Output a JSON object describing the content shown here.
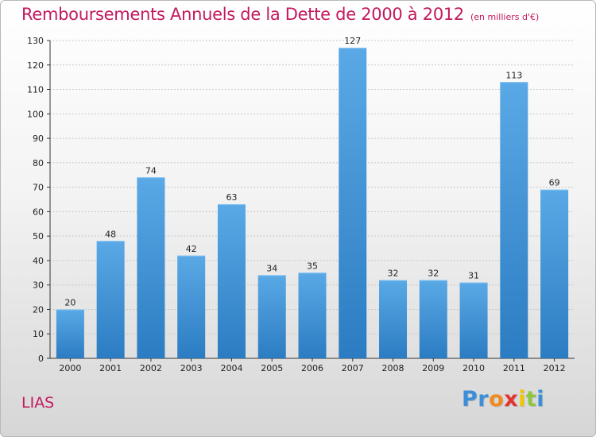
{
  "chart_data": {
    "type": "bar",
    "title": "Remboursements Annuels de la Dette de 2000 à 2012",
    "subtitle": "(en milliers d'€)",
    "categories": [
      "2000",
      "2001",
      "2002",
      "2003",
      "2004",
      "2005",
      "2006",
      "2007",
      "2008",
      "2009",
      "2010",
      "2011",
      "2012"
    ],
    "values": [
      20,
      48,
      74,
      42,
      63,
      34,
      35,
      127,
      32,
      32,
      31,
      113,
      69
    ],
    "ylim": [
      0,
      130
    ],
    "yticks": [
      0,
      10,
      20,
      30,
      40,
      50,
      60,
      70,
      80,
      90,
      100,
      110,
      120,
      130
    ],
    "grid": true,
    "colors": {
      "bar_top": "#5aa9e6",
      "bar_bottom": "#2b7cc2",
      "grid": "#c9c9c9",
      "title": "#c3195d"
    }
  },
  "commune": "LIAS",
  "logo": {
    "letters": [
      "P",
      "r",
      "o",
      "x",
      "i",
      "t",
      "i"
    ],
    "colors": [
      "#3b8fd9",
      "#3b8fd9",
      "#f08a1c",
      "#e3342f",
      "#f2c500",
      "#8cc63f",
      "#3b8fd9"
    ]
  }
}
